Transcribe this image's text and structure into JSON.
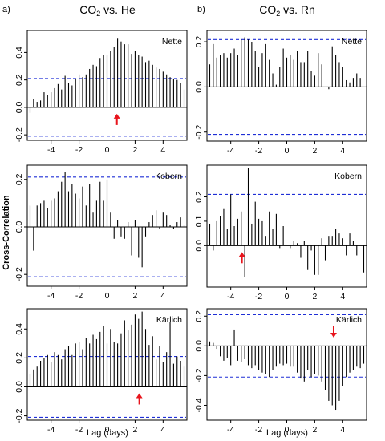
{
  "figure": {
    "panel_letters": [
      "a)",
      "b)"
    ],
    "column_titles": [
      {
        "prefix": "CO",
        "sub": "2",
        "suffix": " vs. He"
      },
      {
        "prefix": "CO",
        "sub": "2",
        "suffix": " vs. Rn"
      }
    ],
    "shared_ylabel": "Cross-Correlation",
    "shared_xlabel": "Lag (days)",
    "bar_color": "#000000",
    "ci_color": "#1f2fd6",
    "arrow_color": "#e8141c"
  },
  "chart_data": [
    {
      "type": "bar",
      "id": "he-nette",
      "site_label": "Nette",
      "x_ticks": [
        -4,
        -2,
        0,
        2,
        4
      ],
      "x_tick_labels": [
        "-4",
        "-2",
        "0",
        "2",
        "4"
      ],
      "xlim": [
        -5.7,
        5.7
      ],
      "y_ticks": [
        -0.2,
        0.0,
        0.2,
        0.4
      ],
      "y_tick_labels": [
        "-0.2",
        "0.0",
        "0.2",
        "0.4"
      ],
      "ylim": [
        -0.24,
        0.56
      ],
      "ci": 0.21,
      "arrow_at": 0.7,
      "arrow_dir": "up",
      "x": [
        -5.5,
        -5.25,
        -5,
        -4.75,
        -4.5,
        -4.25,
        -4,
        -3.75,
        -3.5,
        -3.25,
        -3,
        -2.75,
        -2.5,
        -2.25,
        -2,
        -1.75,
        -1.5,
        -1.25,
        -1,
        -0.75,
        -0.5,
        -0.25,
        0,
        0.25,
        0.5,
        0.75,
        1,
        1.25,
        1.5,
        1.75,
        2,
        2.25,
        2.5,
        2.75,
        3,
        3.25,
        3.5,
        3.75,
        4,
        4.25,
        4.5,
        4.75,
        5,
        5.25,
        5.5
      ],
      "values": [
        -0.04,
        0.06,
        0.04,
        0.05,
        0.11,
        0.09,
        0.11,
        0.14,
        0.17,
        0.13,
        0.23,
        0.18,
        0.16,
        0.21,
        0.24,
        0.22,
        0.24,
        0.28,
        0.31,
        0.3,
        0.36,
        0.38,
        0.38,
        0.41,
        0.44,
        0.5,
        0.48,
        0.46,
        0.46,
        0.39,
        0.41,
        0.38,
        0.37,
        0.33,
        0.34,
        0.31,
        0.29,
        0.28,
        0.26,
        0.24,
        0.22,
        0.21,
        0.2,
        0.18,
        0.13
      ]
    },
    {
      "type": "bar",
      "id": "he-kobern",
      "site_label": "Kobern",
      "x_ticks": [
        -4,
        -2,
        0,
        2,
        4
      ],
      "x_tick_labels": [
        "-4",
        "-2",
        "0",
        "2",
        "4"
      ],
      "xlim": [
        -5.7,
        5.7
      ],
      "y_ticks": [
        -0.2,
        0.0,
        0.2
      ],
      "y_tick_labels": [
        "-0.2",
        "0.0",
        "0.2"
      ],
      "ylim": [
        -0.25,
        0.26
      ],
      "ci": 0.21,
      "x": [
        -5.5,
        -5.25,
        -5,
        -4.75,
        -4.5,
        -4.25,
        -4,
        -3.75,
        -3.5,
        -3.25,
        -3,
        -2.75,
        -2.5,
        -2.25,
        -2,
        -1.75,
        -1.5,
        -1.25,
        -1,
        -0.75,
        -0.5,
        -0.25,
        0,
        0.25,
        0.5,
        0.75,
        1,
        1.25,
        1.5,
        1.75,
        2,
        2.25,
        2.5,
        2.75,
        3,
        3.25,
        3.5,
        3.75,
        4,
        4.25,
        4.5,
        4.75,
        5,
        5.25,
        5.5
      ],
      "values": [
        0.09,
        -0.1,
        0.09,
        0.1,
        0.11,
        0.08,
        0.11,
        0.12,
        0.15,
        0.19,
        0.23,
        0.15,
        0.18,
        0.14,
        0.12,
        0.17,
        0.09,
        0.18,
        0.06,
        0.11,
        0.19,
        0.11,
        0.2,
        0.06,
        -0.05,
        0.03,
        -0.04,
        -0.05,
        0.02,
        -0.12,
        0.03,
        -0.13,
        -0.17,
        -0.04,
        0.02,
        0.05,
        0.07,
        -0.01,
        0.06,
        0.05,
        0.01,
        -0.01,
        0.02,
        0.04,
        0.01
      ]
    },
    {
      "type": "bar",
      "id": "he-karlich",
      "site_label": "Kärlich",
      "x_ticks": [
        -4,
        -2,
        0,
        2,
        4
      ],
      "x_tick_labels": [
        "-4",
        "-2",
        "0",
        "2",
        "4"
      ],
      "xlim": [
        -5.7,
        5.7
      ],
      "y_ticks": [
        -0.2,
        0.0,
        0.2,
        0.4
      ],
      "y_tick_labels": [
        "-0.2",
        "0.0",
        "0.2",
        "0.4"
      ],
      "ylim": [
        -0.23,
        0.54
      ],
      "ci": 0.21,
      "arrow_at": 2.3,
      "arrow_dir": "up",
      "x": [
        -5.5,
        -5.25,
        -5,
        -4.75,
        -4.5,
        -4.25,
        -4,
        -3.75,
        -3.5,
        -3.25,
        -3,
        -2.75,
        -2.5,
        -2.25,
        -2,
        -1.75,
        -1.5,
        -1.25,
        -1,
        -0.75,
        -0.5,
        -0.25,
        0,
        0.25,
        0.5,
        0.75,
        1,
        1.25,
        1.5,
        1.75,
        2,
        2.25,
        2.5,
        2.75,
        3,
        3.25,
        3.5,
        3.75,
        4,
        4.25,
        4.5,
        4.75,
        5,
        5.25,
        5.5
      ],
      "values": [
        0.09,
        0.12,
        0.14,
        0.18,
        0.2,
        0.22,
        0.17,
        0.24,
        0.22,
        0.19,
        0.26,
        0.28,
        0.22,
        0.3,
        0.31,
        0.26,
        0.34,
        0.3,
        0.36,
        0.33,
        0.38,
        0.42,
        0.3,
        0.4,
        0.31,
        0.3,
        0.37,
        0.46,
        0.39,
        0.43,
        0.5,
        0.47,
        0.52,
        0.4,
        0.29,
        0.35,
        0.19,
        0.28,
        0.17,
        0.24,
        0.45,
        0.16,
        0.21,
        0.18,
        0.14
      ]
    },
    {
      "type": "bar",
      "id": "rn-nette",
      "site_label": "Nette",
      "x_ticks": [
        -4,
        -2,
        0,
        2,
        4
      ],
      "x_tick_labels": [
        "-4",
        "-2",
        "0",
        "2",
        "4"
      ],
      "xlim": [
        -5.7,
        5.7
      ],
      "y_ticks": [
        -0.2,
        0.0,
        0.2
      ],
      "y_tick_labels": [
        "-0.2",
        "0.0",
        "0.2"
      ],
      "ylim": [
        -0.24,
        0.25
      ],
      "ci": 0.21,
      "x": [
        -5.5,
        -5.25,
        -5,
        -4.75,
        -4.5,
        -4.25,
        -4,
        -3.75,
        -3.5,
        -3.25,
        -3,
        -2.75,
        -2.5,
        -2.25,
        -2,
        -1.75,
        -1.5,
        -1.25,
        -1,
        -0.75,
        -0.5,
        -0.25,
        0,
        0.25,
        0.5,
        0.75,
        1,
        1.25,
        1.5,
        1.75,
        2,
        2.25,
        2.5,
        2.75,
        3,
        3.25,
        3.5,
        3.75,
        4,
        4.25,
        4.5,
        4.75,
        5,
        5.25,
        5.5
      ],
      "values": [
        0.1,
        0.19,
        0.13,
        0.14,
        0.15,
        0.13,
        0.15,
        0.17,
        0.14,
        0.21,
        0.22,
        0.21,
        0.2,
        0.16,
        0.09,
        0.15,
        0.19,
        0.12,
        0.06,
        0.01,
        0.09,
        0.17,
        0.13,
        0.14,
        0.12,
        0.16,
        0.11,
        0.11,
        0.16,
        0.07,
        0.05,
        0.15,
        0.1,
        0.0,
        -0.01,
        0.18,
        0.14,
        0.11,
        0.09,
        0.03,
        0.02,
        0.04,
        0.06,
        0.04,
        0.0
      ]
    },
    {
      "type": "bar",
      "id": "rn-kobern",
      "site_label": "Kobern",
      "x_ticks": [
        -4,
        -2,
        0,
        2,
        4
      ],
      "x_tick_labels": [
        "-4",
        "-2",
        "0",
        "2",
        "4"
      ],
      "xlim": [
        -5.7,
        5.7
      ],
      "y_ticks": [
        0.0,
        0.1,
        0.2
      ],
      "y_tick_labels": [
        "0.0",
        "0.1",
        "0.2"
      ],
      "ylim": [
        -0.17,
        0.33
      ],
      "ci": 0.21,
      "ci_low": -0.21,
      "arrow_at": -3.2,
      "arrow_dir": "up",
      "x": [
        -5.5,
        -5.25,
        -5,
        -4.75,
        -4.5,
        -4.25,
        -4,
        -3.75,
        -3.5,
        -3.25,
        -3,
        -2.75,
        -2.5,
        -2.25,
        -2,
        -1.75,
        -1.5,
        -1.25,
        -1,
        -0.75,
        -0.5,
        -0.25,
        0,
        0.25,
        0.5,
        0.75,
        1,
        1.25,
        1.5,
        1.75,
        2,
        2.25,
        2.5,
        2.75,
        3,
        3.25,
        3.5,
        3.75,
        4,
        4.25,
        4.5,
        4.75,
        5,
        5.25,
        5.5
      ],
      "values": [
        0.09,
        -0.02,
        0.1,
        0.12,
        0.15,
        0.07,
        0.21,
        0.08,
        0.11,
        0.14,
        -0.13,
        0.32,
        0.09,
        0.18,
        0.11,
        0.1,
        0.04,
        0.14,
        0.07,
        0.13,
        -0.01,
        0.08,
        0.0,
        -0.01,
        0.02,
        0.01,
        -0.05,
        0.02,
        -0.1,
        -0.02,
        -0.12,
        -0.12,
        0.03,
        -0.06,
        0.04,
        0.04,
        0.07,
        0.05,
        0.03,
        -0.04,
        0.05,
        0.02,
        -0.04,
        0.0,
        -0.11
      ]
    },
    {
      "type": "bar",
      "id": "rn-karlich",
      "site_label": "Kärlich",
      "x_ticks": [
        -4,
        -2,
        0,
        2,
        4
      ],
      "x_tick_labels": [
        "-4",
        "-2",
        "0",
        "2",
        "4"
      ],
      "xlim": [
        -5.7,
        5.7
      ],
      "y_ticks": [
        -0.4,
        -0.2,
        0.0,
        0.2
      ],
      "y_tick_labels": [
        "-0.4",
        "-0.2",
        "0.0",
        "0.2"
      ],
      "ylim": [
        -0.5,
        0.25
      ],
      "ci": 0.21,
      "arrow_at": 3.35,
      "arrow_dir": "down",
      "x": [
        -5.5,
        -5.25,
        -5,
        -4.75,
        -4.5,
        -4.25,
        -4,
        -3.75,
        -3.5,
        -3.25,
        -3,
        -2.75,
        -2.5,
        -2.25,
        -2,
        -1.75,
        -1.5,
        -1.25,
        -1,
        -0.75,
        -0.5,
        -0.25,
        0,
        0.25,
        0.5,
        0.75,
        1,
        1.25,
        1.5,
        1.75,
        2,
        2.25,
        2.5,
        2.75,
        3,
        3.25,
        3.5,
        3.75,
        4,
        4.25,
        4.5,
        4.75,
        5,
        5.25,
        5.5
      ],
      "values": [
        0.03,
        0.02,
        -0.02,
        -0.07,
        -0.1,
        -0.08,
        -0.13,
        0.11,
        -0.1,
        -0.11,
        -0.09,
        -0.13,
        -0.15,
        -0.13,
        -0.16,
        -0.18,
        -0.19,
        -0.21,
        -0.16,
        -0.14,
        -0.12,
        -0.13,
        -0.12,
        -0.14,
        -0.14,
        -0.18,
        -0.22,
        -0.24,
        -0.16,
        -0.21,
        -0.19,
        -0.2,
        -0.24,
        -0.3,
        -0.37,
        -0.4,
        -0.43,
        -0.37,
        -0.27,
        -0.21,
        -0.18,
        -0.16,
        -0.14,
        -0.15,
        -0.12
      ]
    }
  ]
}
